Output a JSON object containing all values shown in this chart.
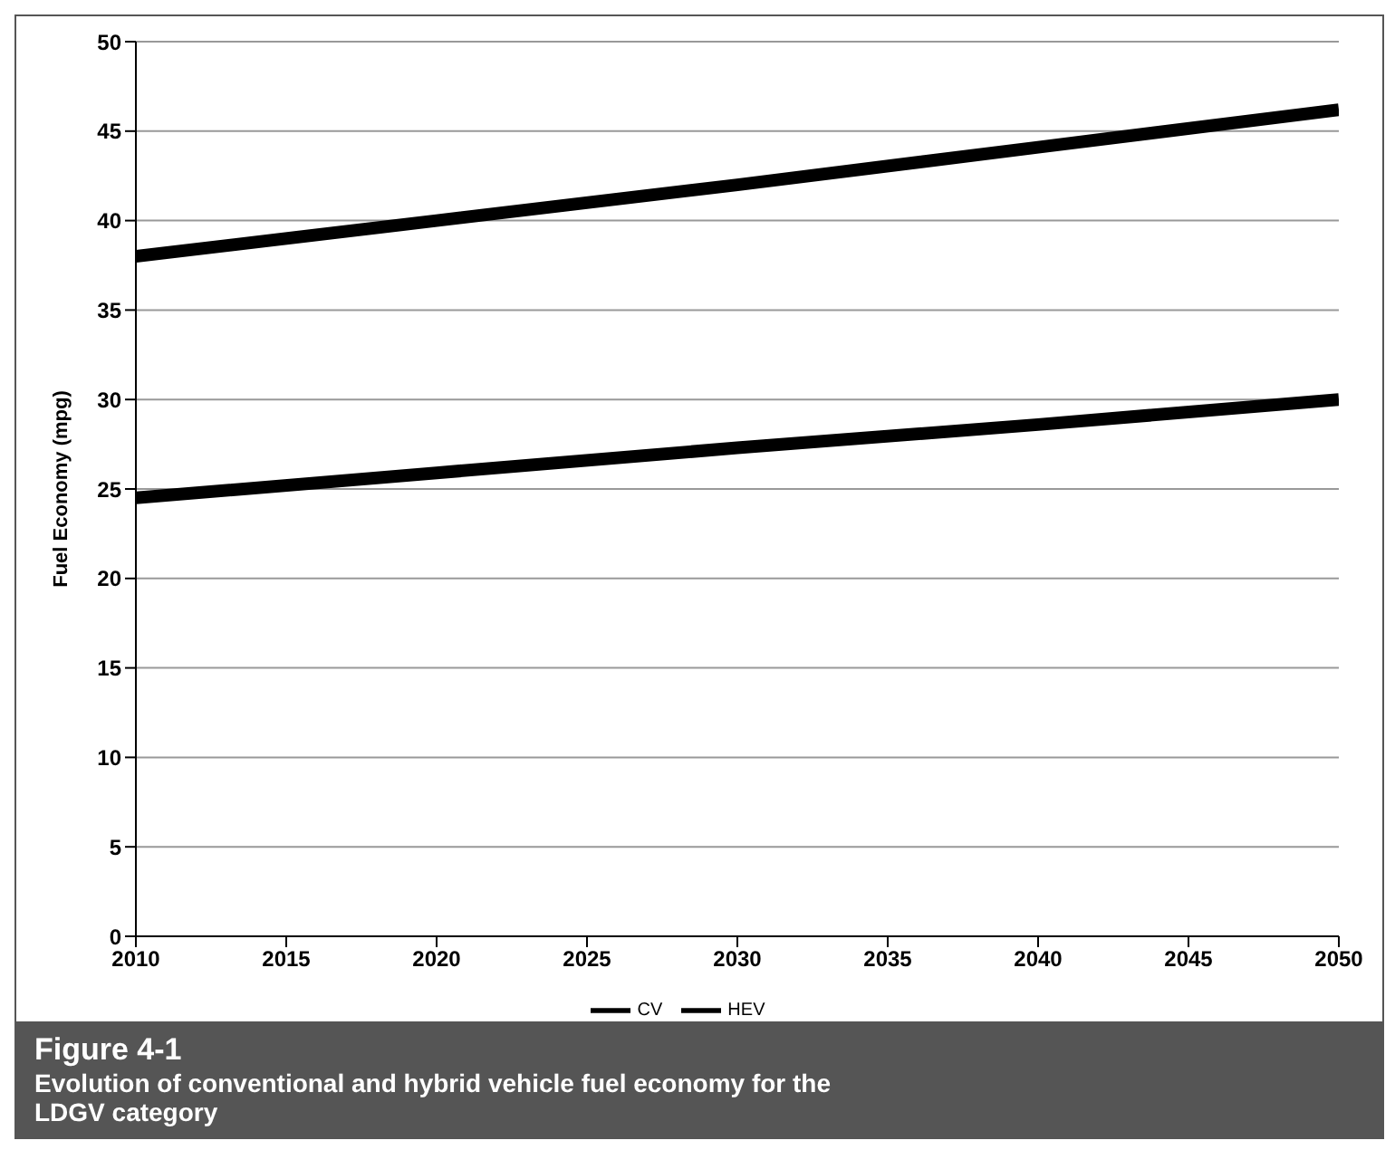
{
  "chart_data": {
    "type": "line",
    "title": "Figure 4-1",
    "subtitle": "Evolution of conventional and hybrid vehicle fuel economy for the LDGV category",
    "ylabel": "Fuel Economy (mpg)",
    "x": [
      2010,
      2020,
      2030,
      2040,
      2050
    ],
    "series": [
      {
        "name": "CV",
        "color": "#000000",
        "values": [
          24.5,
          25.9,
          27.3,
          28.6,
          30
        ]
      },
      {
        "name": "HEV",
        "color": "#000000",
        "values": [
          38,
          40,
          42,
          44.1,
          46.2
        ]
      }
    ],
    "xlim": [
      2010,
      2050
    ],
    "xticks": [
      2010,
      2015,
      2020,
      2025,
      2030,
      2035,
      2040,
      2045,
      2050
    ],
    "ylim": [
      0,
      50
    ],
    "yticks": [
      0,
      5,
      10,
      15,
      20,
      25,
      30,
      35,
      40,
      45,
      50
    ],
    "grid": "y",
    "legend": "bottom",
    "marker": "none",
    "line_style": "solid"
  }
}
